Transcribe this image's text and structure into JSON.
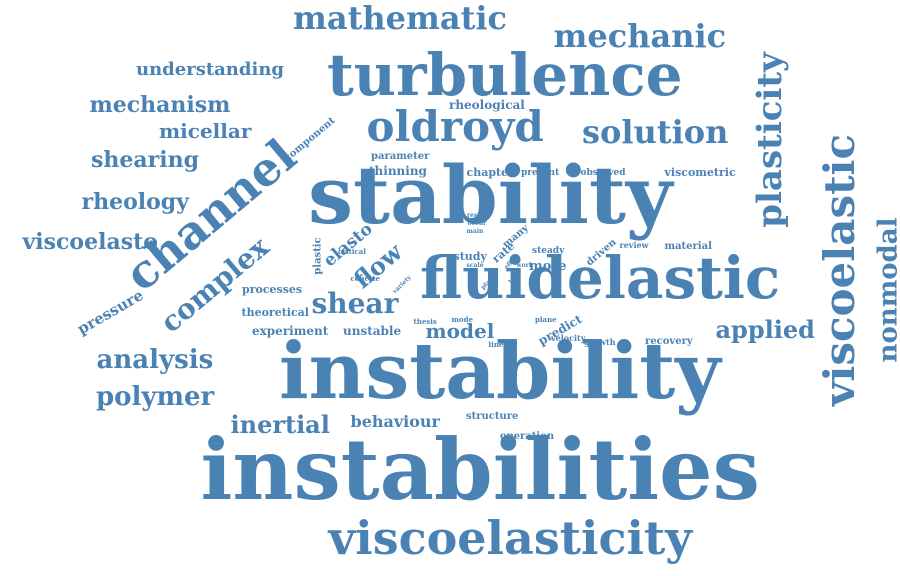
{
  "word_cloud": {
    "color": "#4b82b4",
    "background": "#ffffff",
    "words": [
      {
        "text": "instabilities",
        "orientation": "horizontal"
      },
      {
        "text": "instability",
        "orientation": "horizontal"
      },
      {
        "text": "stability",
        "orientation": "horizontal"
      },
      {
        "text": "turbulence",
        "orientation": "horizontal"
      },
      {
        "text": "viscoelastic",
        "orientation": "vertical"
      },
      {
        "text": "fluidelastic",
        "orientation": "horizontal"
      },
      {
        "text": "viscoelasticity",
        "orientation": "horizontal"
      },
      {
        "text": "channel",
        "orientation": "diagonal"
      },
      {
        "text": "oldroyd",
        "orientation": "horizontal"
      },
      {
        "text": "mathematic",
        "orientation": "horizontal"
      },
      {
        "text": "mechanic",
        "orientation": "horizontal"
      },
      {
        "text": "solution",
        "orientation": "horizontal"
      },
      {
        "text": "plasticity",
        "orientation": "vertical"
      },
      {
        "text": "nonmodal",
        "orientation": "vertical"
      },
      {
        "text": "complex",
        "orientation": "diagonal"
      },
      {
        "text": "analysis",
        "orientation": "horizontal"
      },
      {
        "text": "polymer",
        "orientation": "horizontal"
      },
      {
        "text": "mechanism",
        "orientation": "horizontal"
      },
      {
        "text": "shearing",
        "orientation": "horizontal"
      },
      {
        "text": "rheology",
        "orientation": "horizontal"
      },
      {
        "text": "viscoelasto",
        "orientation": "horizontal"
      },
      {
        "text": "micellar",
        "orientation": "horizontal"
      },
      {
        "text": "understanding",
        "orientation": "horizontal"
      },
      {
        "text": "applied",
        "orientation": "horizontal"
      },
      {
        "text": "inertial",
        "orientation": "horizontal"
      },
      {
        "text": "shear",
        "orientation": "horizontal"
      },
      {
        "text": "model",
        "orientation": "horizontal"
      },
      {
        "text": "flow",
        "orientation": "diagonal"
      },
      {
        "text": "elasto",
        "orientation": "diagonal"
      },
      {
        "text": "pressure",
        "orientation": "diagonal"
      },
      {
        "text": "behaviour",
        "orientation": "horizontal"
      },
      {
        "text": "thinning",
        "orientation": "horizontal"
      },
      {
        "text": "experiment",
        "orientation": "horizontal"
      },
      {
        "text": "unstable",
        "orientation": "horizontal"
      },
      {
        "text": "theoretical",
        "orientation": "horizontal"
      },
      {
        "text": "processes",
        "orientation": "horizontal"
      },
      {
        "text": "component",
        "orientation": "diagonal"
      },
      {
        "text": "rheological",
        "orientation": "horizontal"
      },
      {
        "text": "parameter",
        "orientation": "horizontal"
      },
      {
        "text": "chapter",
        "orientation": "horizontal"
      },
      {
        "text": "present",
        "orientation": "horizontal"
      },
      {
        "text": "observed",
        "orientation": "horizontal"
      },
      {
        "text": "viscometric",
        "orientation": "horizontal"
      },
      {
        "text": "plastic",
        "orientation": "vertical"
      },
      {
        "text": "critical",
        "orientation": "horizontal"
      },
      {
        "text": "couette",
        "orientation": "horizontal"
      },
      {
        "text": "study",
        "orientation": "horizontal"
      },
      {
        "text": "rate",
        "orientation": "diagonal"
      },
      {
        "text": "many",
        "orientation": "diagonal"
      },
      {
        "text": "steady",
        "orientation": "horizontal"
      },
      {
        "text": "more",
        "orientation": "horizontal"
      },
      {
        "text": "driven",
        "orientation": "diagonal"
      },
      {
        "text": "review",
        "orientation": "horizontal"
      },
      {
        "text": "material",
        "orientation": "horizontal"
      },
      {
        "text": "predict",
        "orientation": "diagonal"
      },
      {
        "text": "plane",
        "orientation": "horizontal"
      },
      {
        "text": "velocity",
        "orientation": "horizontal"
      },
      {
        "text": "growth",
        "orientation": "horizontal"
      },
      {
        "text": "recovery",
        "orientation": "horizontal"
      },
      {
        "text": "linear",
        "orientation": "horizontal"
      },
      {
        "text": "thesis",
        "orientation": "horizontal"
      },
      {
        "text": "mode",
        "orientation": "horizontal"
      },
      {
        "text": "structure",
        "orientation": "horizontal"
      },
      {
        "text": "operation",
        "orientation": "horizontal"
      },
      {
        "text": "result",
        "orientation": "horizontal"
      },
      {
        "text": "occur",
        "orientation": "horizontal"
      },
      {
        "text": "main",
        "orientation": "horizontal"
      },
      {
        "text": "scale",
        "orientation": "horizontal"
      },
      {
        "text": "variety",
        "orientation": "diagonal"
      },
      {
        "text": "effect",
        "orientation": "diagonal"
      },
      {
        "text": "work",
        "orientation": "horizontal"
      },
      {
        "text": "loop",
        "orientation": "diagonal"
      },
      {
        "text": "plate",
        "orientation": "diagonal"
      }
    ]
  }
}
